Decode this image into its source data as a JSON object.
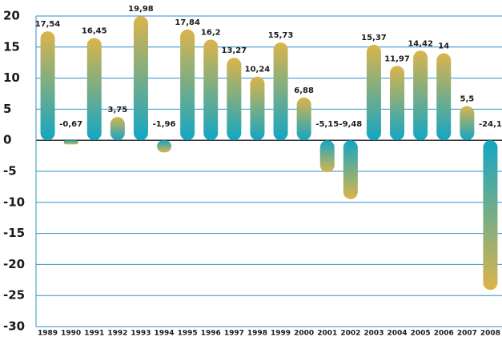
{
  "chart_data": {
    "type": "bar",
    "categories": [
      "1989",
      "1990",
      "1991",
      "1992",
      "1993",
      "1994",
      "1995",
      "1996",
      "1997",
      "1998",
      "1999",
      "2000",
      "2001",
      "2002",
      "2003",
      "2004",
      "2005",
      "2006",
      "2007",
      "2008"
    ],
    "values": [
      17.54,
      -0.67,
      16.45,
      3.75,
      19.98,
      -1.96,
      17.84,
      16.2,
      13.27,
      10.24,
      15.73,
      6.88,
      -5.15,
      -9.48,
      15.37,
      11.97,
      14.42,
      14,
      5.5,
      -24.1
    ],
    "value_labels": [
      "17,54",
      "-0,67",
      "16,45",
      "3,75",
      "19,98",
      "-1,96",
      "17,84",
      "16,2",
      "13,27",
      "10,24",
      "15,73",
      "6,88",
      "-5,15",
      "-9,48",
      "15,37",
      "11,97",
      "14,42",
      "14",
      "5,5",
      "-24,1"
    ],
    "colors": [
      "#dcb44a",
      "#13a6c4"
    ],
    "ylim": [
      -30,
      20
    ],
    "yticks": [
      -30,
      -25,
      -20,
      -15,
      -10,
      -5,
      0,
      5,
      10,
      15,
      20
    ],
    "grid": true
  }
}
